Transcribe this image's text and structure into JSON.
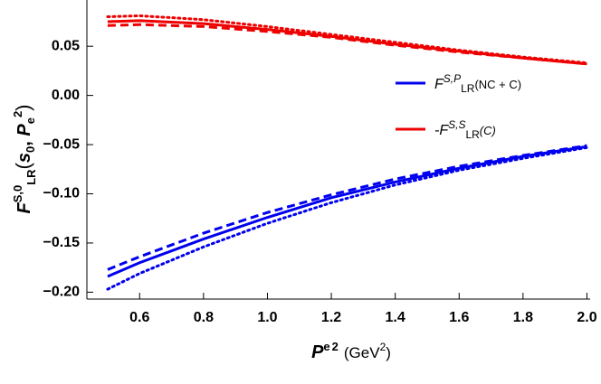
{
  "chart_data": {
    "type": "line",
    "x": [
      0.5,
      0.6,
      0.8,
      1.0,
      1.2,
      1.4,
      1.6,
      1.8,
      2.0
    ],
    "series": [
      {
        "name": [
          "F",
          "S,P",
          "LR",
          "(NC + C)"
        ],
        "color": "#0000ee",
        "dash": "solid",
        "values": [
          -0.184,
          -0.17,
          -0.146,
          -0.124,
          -0.104,
          -0.088,
          -0.074,
          -0.062,
          -0.052
        ]
      },
      {
        "color": "#0000ee",
        "dash": "dashed",
        "values": [
          -0.177,
          -0.164,
          -0.14,
          -0.119,
          -0.101,
          -0.085,
          -0.072,
          -0.061,
          -0.051
        ]
      },
      {
        "color": "#0000ee",
        "dash": "dotted",
        "values": [
          -0.197,
          -0.181,
          -0.154,
          -0.13,
          -0.109,
          -0.091,
          -0.076,
          -0.064,
          -0.053
        ]
      },
      {
        "name": [
          "-F",
          "S,S",
          "LR",
          "(C)"
        ],
        "color": "#ee0000",
        "dash": "solid",
        "values": [
          0.075,
          0.076,
          0.073,
          0.067,
          0.06,
          0.052,
          0.045,
          0.038,
          0.032
        ]
      },
      {
        "color": "#ee0000",
        "dash": "dashed",
        "values": [
          0.071,
          0.072,
          0.07,
          0.065,
          0.059,
          0.051,
          0.044,
          0.038,
          0.032
        ]
      },
      {
        "color": "#ee0000",
        "dash": "dotted",
        "values": [
          0.08,
          0.081,
          0.077,
          0.07,
          0.062,
          0.054,
          0.046,
          0.039,
          0.033
        ]
      }
    ],
    "xlabel": [
      "P",
      "e",
      "2",
      "(GeV",
      "2",
      ")"
    ],
    "ylabel": [
      "F",
      "S,0",
      "LR",
      "(",
      "s",
      "0",
      ", ",
      "P",
      "e",
      "2",
      ")"
    ],
    "xlim": [
      0.435,
      2.01
    ],
    "ylim": [
      -0.207,
      0.097
    ],
    "xticks": [
      0.6,
      0.8,
      {
        "value": 1.0,
        "label": "1.0"
      },
      1.2,
      1.4,
      1.6,
      1.8,
      {
        "value": 2.0,
        "label": "2.0"
      }
    ],
    "yticks": [
      {
        "value": -0.2,
        "label": "−0.20"
      },
      {
        "value": -0.15,
        "label": "−0.15"
      },
      {
        "value": -0.1,
        "label": "−0.10"
      },
      {
        "value": -0.05,
        "label": "−0.05"
      },
      {
        "value": 0,
        "label": "0.00"
      },
      {
        "value": 0.05,
        "label": "0.05"
      }
    ],
    "legend": "right"
  }
}
